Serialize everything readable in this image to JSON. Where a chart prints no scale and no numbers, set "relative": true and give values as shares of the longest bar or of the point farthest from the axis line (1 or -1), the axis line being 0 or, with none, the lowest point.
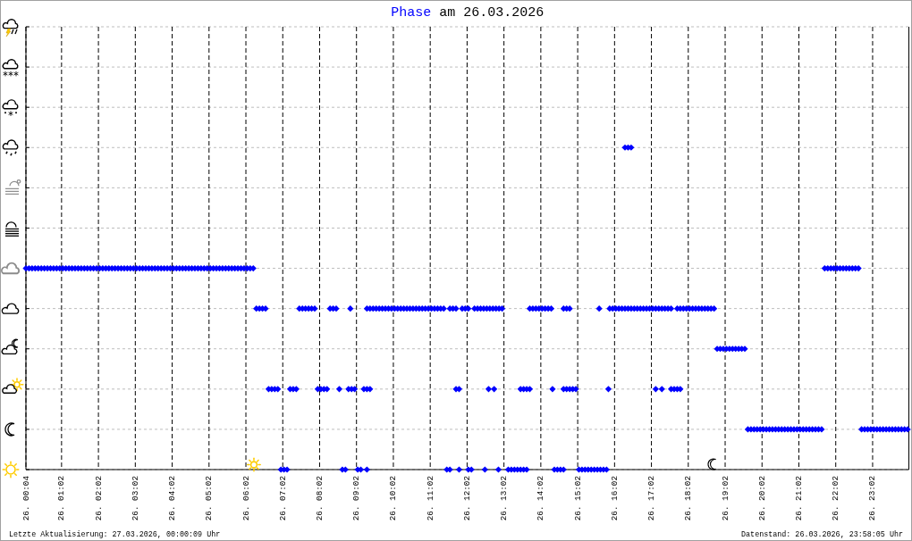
{
  "chart_data": {
    "type": "scatter",
    "title": "am 26.03.2026",
    "legend": "top",
    "marker": "diamond",
    "grid": true,
    "relative": true,
    "xlim": [
      "2026-03-26T00:04",
      "2026-03-27T00:01"
    ],
    "xticks": [
      {
        "value": "2026-03-26T00:04",
        "label": "26. 00:04"
      },
      {
        "value": "2026-03-26T01:02",
        "label": "26. 01:02"
      },
      {
        "value": "2026-03-26T02:02",
        "label": "26. 02:02"
      },
      {
        "value": "2026-03-26T03:02",
        "label": "26. 03:02"
      },
      {
        "value": "2026-03-26T04:02",
        "label": "26. 04:02"
      },
      {
        "value": "2026-03-26T05:02",
        "label": "26. 05:02"
      },
      {
        "value": "2026-03-26T06:02",
        "label": "26. 06:02"
      },
      {
        "value": "2026-03-26T07:02",
        "label": "26. 07:02"
      },
      {
        "value": "2026-03-26T08:02",
        "label": "26. 08:02"
      },
      {
        "value": "2026-03-26T09:02",
        "label": "26. 09:02"
      },
      {
        "value": "2026-03-26T10:02",
        "label": "26. 10:02"
      },
      {
        "value": "2026-03-26T11:02",
        "label": "26. 11:02"
      },
      {
        "value": "2026-03-26T12:02",
        "label": "26. 12:02"
      },
      {
        "value": "2026-03-26T13:02",
        "label": "26. 13:02"
      },
      {
        "value": "2026-03-26T14:02",
        "label": "26. 14:02"
      },
      {
        "value": "2026-03-26T15:02",
        "label": "26. 15:02"
      },
      {
        "value": "2026-03-26T16:02",
        "label": "26. 16:02"
      },
      {
        "value": "2026-03-26T17:02",
        "label": "26. 17:02"
      },
      {
        "value": "2026-03-26T18:02",
        "label": "26. 18:02"
      },
      {
        "value": "2026-03-26T19:02",
        "label": "26. 19:02"
      },
      {
        "value": "2026-03-26T20:02",
        "label": "26. 20:02"
      },
      {
        "value": "2026-03-26T21:02",
        "label": "26. 21:02"
      },
      {
        "value": "2026-03-26T22:02",
        "label": "26. 22:02"
      },
      {
        "value": "2026-03-26T23:02",
        "label": "26. 23:02"
      }
    ],
    "annotations": [
      "Letzte Aktualisierung: 27.03.2026, 00:00:09 Uhr",
      "Datenstand: 26.03.2026, 23:58:05 Uhr"
    ],
    "x": [
      "2026-03-26T00:04",
      "2026-03-26T00:09",
      "2026-03-26T00:14",
      "2026-03-26T00:19",
      "2026-03-26T00:24",
      "2026-03-26T00:29",
      "2026-03-26T00:34",
      "2026-03-26T00:39",
      "2026-03-26T00:44",
      "2026-03-26T00:49",
      "2026-03-26T00:54",
      "2026-03-26T00:59",
      "2026-03-26T01:04",
      "2026-03-26T01:09",
      "2026-03-26T01:14",
      "2026-03-26T01:19",
      "2026-03-26T01:24",
      "2026-03-26T01:29",
      "2026-03-26T01:34",
      "2026-03-26T01:39",
      "2026-03-26T01:44",
      "2026-03-26T01:49",
      "2026-03-26T01:54",
      "2026-03-26T01:59",
      "2026-03-26T02:04",
      "2026-03-26T02:09",
      "2026-03-26T02:14",
      "2026-03-26T02:19",
      "2026-03-26T02:24",
      "2026-03-26T02:29",
      "2026-03-26T02:34",
      "2026-03-26T02:39",
      "2026-03-26T02:44",
      "2026-03-26T02:49",
      "2026-03-26T02:54",
      "2026-03-26T02:59",
      "2026-03-26T03:04",
      "2026-03-26T03:09",
      "2026-03-26T03:14",
      "2026-03-26T03:19",
      "2026-03-26T03:24",
      "2026-03-26T03:29",
      "2026-03-26T03:34",
      "2026-03-26T03:39",
      "2026-03-26T03:44",
      "2026-03-26T03:49",
      "2026-03-26T03:54",
      "2026-03-26T03:59",
      "2026-03-26T04:04",
      "2026-03-26T04:09",
      "2026-03-26T04:14",
      "2026-03-26T04:19",
      "2026-03-26T04:24",
      "2026-03-26T04:29",
      "2026-03-26T04:34",
      "2026-03-26T04:39",
      "2026-03-26T04:44",
      "2026-03-26T04:49",
      "2026-03-26T04:54",
      "2026-03-26T04:59",
      "2026-03-26T05:04",
      "2026-03-26T05:09",
      "2026-03-26T05:14",
      "2026-03-26T05:19",
      "2026-03-26T05:24",
      "2026-03-26T05:29",
      "2026-03-26T05:34",
      "2026-03-26T05:39",
      "2026-03-26T05:44",
      "2026-03-26T05:49",
      "2026-03-26T05:54",
      "2026-03-26T05:59",
      "2026-03-26T06:04",
      "2026-03-26T06:09",
      "2026-03-26T06:14",
      "2026-03-26T06:19",
      "2026-03-26T06:24",
      "2026-03-26T06:29",
      "2026-03-26T06:34",
      "2026-03-26T06:39",
      "2026-03-26T06:44",
      "2026-03-26T06:49",
      "2026-03-26T06:54",
      "2026-03-26T06:59",
      "2026-03-26T07:04",
      "2026-03-26T07:09",
      "2026-03-26T07:14",
      "2026-03-26T07:19",
      "2026-03-26T07:24",
      "2026-03-26T07:29",
      "2026-03-26T07:34",
      "2026-03-26T07:39",
      "2026-03-26T07:44",
      "2026-03-26T07:49",
      "2026-03-26T07:54",
      "2026-03-26T07:59",
      "2026-03-26T08:04",
      "2026-03-26T08:09",
      "2026-03-26T08:14",
      "2026-03-26T08:19",
      "2026-03-26T08:24",
      "2026-03-26T08:29",
      "2026-03-26T08:34",
      "2026-03-26T08:39",
      "2026-03-26T08:44",
      "2026-03-26T08:49",
      "2026-03-26T08:54",
      "2026-03-26T08:59",
      "2026-03-26T08:52",
      "2026-03-26T09:04",
      "2026-03-26T09:09",
      "2026-03-26T09:14",
      "2026-03-26T09:19",
      "2026-03-26T09:24",
      "2026-03-26T09:19",
      "2026-03-26T09:24",
      "2026-03-26T09:29",
      "2026-03-26T09:34",
      "2026-03-26T09:39",
      "2026-03-26T09:44",
      "2026-03-26T09:49",
      "2026-03-26T09:54",
      "2026-03-26T09:59",
      "2026-03-26T10:04",
      "2026-03-26T10:09",
      "2026-03-26T10:14",
      "2026-03-26T10:19",
      "2026-03-26T10:24",
      "2026-03-26T10:29",
      "2026-03-26T10:34",
      "2026-03-26T10:39",
      "2026-03-26T10:44",
      "2026-03-26T10:49",
      "2026-03-26T10:54",
      "2026-03-26T10:59",
      "2026-03-26T11:04",
      "2026-03-26T11:09",
      "2026-03-26T11:14",
      "2026-03-26T11:19",
      "2026-03-26T11:24",
      "2026-03-26T09:19",
      "2026-03-26T11:29",
      "2026-03-26T11:34",
      "2026-03-26T11:34",
      "2026-03-26T11:39",
      "2026-03-26T11:44",
      "2026-03-26T11:44",
      "2026-03-26T11:49",
      "2026-03-26T11:49",
      "2026-03-26T11:54",
      "2026-03-26T11:59",
      "2026-03-26T12:04",
      "2026-03-26T12:04",
      "2026-03-26T12:09",
      "2026-03-26T12:14",
      "2026-03-26T12:19",
      "2026-03-26T12:24",
      "2026-03-26T12:29",
      "2026-03-26T12:34",
      "2026-03-26T12:39",
      "2026-03-26T12:44",
      "2026-03-26T12:49",
      "2026-03-26T12:54",
      "2026-03-26T12:59",
      "2026-03-26T12:31",
      "2026-03-26T12:37",
      "2026-03-26T12:46",
      "2026-03-26T12:53",
      "2026-03-26T13:09",
      "2026-03-26T13:14",
      "2026-03-26T13:19",
      "2026-03-26T13:24",
      "2026-03-26T13:29",
      "2026-03-26T13:34",
      "2026-03-26T13:39",
      "2026-03-26T13:29",
      "2026-03-26T13:34",
      "2026-03-26T13:39",
      "2026-03-26T13:44",
      "2026-03-26T13:44",
      "2026-03-26T13:49",
      "2026-03-26T13:54",
      "2026-03-26T13:59",
      "2026-03-26T14:04",
      "2026-03-26T14:09",
      "2026-03-26T14:14",
      "2026-03-26T14:19",
      "2026-03-26T14:21",
      "2026-03-26T14:24",
      "2026-03-26T14:29",
      "2026-03-26T14:34",
      "2026-03-26T14:39",
      "2026-03-26T14:39",
      "2026-03-26T14:44",
      "2026-03-26T14:49",
      "2026-03-26T14:39",
      "2026-03-26T14:44",
      "2026-03-26T14:49",
      "2026-03-26T14:54",
      "2026-03-26T14:59",
      "2026-03-26T15:04",
      "2026-03-26T15:09",
      "2026-03-26T15:14",
      "2026-03-26T15:19",
      "2026-03-26T15:24",
      "2026-03-26T15:29",
      "2026-03-26T15:34",
      "2026-03-26T15:39",
      "2026-03-26T15:44",
      "2026-03-26T15:49",
      "2026-03-26T15:37",
      "2026-03-26T15:52",
      "2026-03-26T15:54",
      "2026-03-26T15:59",
      "2026-03-26T16:04",
      "2026-03-26T16:09",
      "2026-03-26T16:14",
      "2026-03-26T16:19",
      "2026-03-26T16:24",
      "2026-03-26T16:29",
      "2026-03-26T16:34",
      "2026-03-26T16:39",
      "2026-03-26T16:44",
      "2026-03-26T16:49",
      "2026-03-26T16:54",
      "2026-03-26T16:59",
      "2026-03-26T17:04",
      "2026-03-26T17:09",
      "2026-03-26T17:14",
      "2026-03-26T17:19",
      "2026-03-26T17:24",
      "2026-03-26T17:29",
      "2026-03-26T17:34",
      "2026-03-26T16:19",
      "2026-03-26T16:24",
      "2026-03-26T16:29",
      "2026-03-26T17:09",
      "2026-03-26T17:19",
      "2026-03-26T17:34",
      "2026-03-26T17:39",
      "2026-03-26T17:44",
      "2026-03-26T17:49",
      "2026-03-26T17:44",
      "2026-03-26T17:49",
      "2026-03-26T17:54",
      "2026-03-26T17:59",
      "2026-03-26T18:04",
      "2026-03-26T18:09",
      "2026-03-26T18:14",
      "2026-03-26T18:19",
      "2026-03-26T18:24",
      "2026-03-26T18:29",
      "2026-03-26T18:34",
      "2026-03-26T18:39",
      "2026-03-26T18:44",
      "2026-03-26T18:49",
      "2026-03-26T18:54",
      "2026-03-26T18:59",
      "2026-03-26T19:04",
      "2026-03-26T19:09",
      "2026-03-26T19:14",
      "2026-03-26T19:19",
      "2026-03-26T19:24",
      "2026-03-26T19:29",
      "2026-03-26T19:34",
      "2026-03-26T19:39",
      "2026-03-26T19:44",
      "2026-03-26T19:49",
      "2026-03-26T19:54",
      "2026-03-26T19:59",
      "2026-03-26T20:04",
      "2026-03-26T20:09",
      "2026-03-26T20:14",
      "2026-03-26T20:19",
      "2026-03-26T20:24",
      "2026-03-26T20:29",
      "2026-03-26T20:34",
      "2026-03-26T20:39",
      "2026-03-26T20:44",
      "2026-03-26T20:49",
      "2026-03-26T20:54",
      "2026-03-26T20:59",
      "2026-03-26T21:04",
      "2026-03-26T21:09",
      "2026-03-26T21:14",
      "2026-03-26T21:19",
      "2026-03-26T21:24",
      "2026-03-26T21:29",
      "2026-03-26T21:34",
      "2026-03-26T21:39",
      "2026-03-26T21:44",
      "2026-03-26T21:49",
      "2026-03-26T21:54",
      "2026-03-26T21:59",
      "2026-03-26T22:04",
      "2026-03-26T22:09",
      "2026-03-26T22:14",
      "2026-03-26T22:19",
      "2026-03-26T22:24",
      "2026-03-26T22:29",
      "2026-03-26T22:34",
      "2026-03-26T22:39",
      "2026-03-26T22:44",
      "2026-03-26T22:49",
      "2026-03-26T22:54",
      "2026-03-26T22:59",
      "2026-03-26T23:04",
      "2026-03-26T23:09",
      "2026-03-26T23:14",
      "2026-03-26T23:19",
      "2026-03-26T23:24",
      "2026-03-26T23:29",
      "2026-03-26T23:34",
      "2026-03-26T23:39",
      "2026-03-26T23:44",
      "2026-03-26T23:49",
      "2026-03-26T23:54",
      "2026-03-26T23:59"
    ],
    "series": [
      {
        "name": "Phase",
        "color": "#0000ff",
        "values": [
          0.625,
          0.625,
          0.625,
          0.625,
          0.625,
          0.625,
          0.625,
          0.625,
          0.625,
          0.625,
          0.625,
          0.625,
          0.625,
          0.625,
          0.625,
          0.625,
          0.625,
          0.625,
          0.625,
          0.625,
          0.625,
          0.625,
          0.625,
          0.625,
          0.625,
          0.625,
          0.625,
          0.625,
          0.625,
          0.625,
          0.625,
          0.625,
          0.625,
          0.625,
          0.625,
          0.625,
          0.625,
          0.625,
          0.625,
          0.625,
          0.625,
          0.625,
          0.625,
          0.625,
          0.625,
          0.625,
          0.625,
          0.625,
          0.625,
          0.625,
          0.625,
          0.625,
          0.625,
          0.625,
          0.625,
          0.625,
          0.625,
          0.625,
          0.625,
          0.625,
          0.625,
          0.625,
          0.625,
          0.625,
          0.625,
          0.625,
          0.625,
          0.625,
          0.625,
          0.625,
          0.625,
          0.625,
          0.625,
          0.625,
          0.625,
          0.5,
          0.5,
          0.5,
          0.5,
          0.25,
          0.25,
          0.25,
          0.25,
          0,
          0,
          0,
          0.25,
          0.25,
          0.25,
          0.5,
          0.5,
          0.5,
          0.5,
          0.5,
          0.5,
          0.25,
          0.25,
          0.25,
          0.25,
          0.5,
          0.5,
          0.5,
          0.25,
          0,
          0,
          0.25,
          0.25,
          0.25,
          0.5,
          0,
          0,
          0.25,
          0.25,
          0.25,
          0.5,
          0.5,
          0.5,
          0.5,
          0.5,
          0.5,
          0.5,
          0.5,
          0.5,
          0.5,
          0.5,
          0.5,
          0.5,
          0.5,
          0.5,
          0.5,
          0.5,
          0.5,
          0.5,
          0.5,
          0.5,
          0.5,
          0.5,
          0.5,
          0.5,
          0.5,
          0,
          0,
          0,
          0.5,
          0.5,
          0.5,
          0.25,
          0.25,
          0,
          0.5,
          0.5,
          0.5,
          0,
          0,
          0.5,
          0.5,
          0.5,
          0.5,
          0.5,
          0.5,
          0.5,
          0.5,
          0.5,
          0.5,
          0,
          0.25,
          0.25,
          0,
          0,
          0,
          0,
          0,
          0,
          0,
          0,
          0.25,
          0.25,
          0.25,
          0.25,
          0.5,
          0.5,
          0.5,
          0.5,
          0.5,
          0.5,
          0.5,
          0.5,
          0.25,
          0,
          0,
          0,
          0,
          0.5,
          0.5,
          0.5,
          0.25,
          0.25,
          0.25,
          0.25,
          0.25,
          0,
          0,
          0,
          0,
          0,
          0,
          0,
          0,
          0,
          0,
          0.5,
          0.25,
          0.5,
          0.5,
          0.5,
          0.5,
          0.5,
          0.5,
          0.5,
          0.5,
          0.5,
          0.5,
          0.5,
          0.5,
          0.5,
          0.5,
          0.5,
          0.5,
          0.5,
          0.5,
          0.5,
          0.5,
          0.5,
          1,
          1,
          1,
          0.25,
          0.25,
          0.25,
          0.25,
          0.25,
          0.25,
          0.5,
          0.5,
          0.5,
          0.5,
          0.5,
          0.5,
          0.5,
          0.5,
          0.5,
          0.5,
          0.5,
          0.5,
          0.5,
          0.375,
          0.375,
          0.375,
          0.375,
          0.375,
          0.375,
          0.375,
          0.375,
          0.375,
          0.375,
          0.125,
          0.125,
          0.125,
          0.125,
          0.125,
          0.125,
          0.125,
          0.125,
          0.125,
          0.125,
          0.125,
          0.125,
          0.125,
          0.125,
          0.125,
          0.125,
          0.125,
          0.125,
          0.125,
          0.125,
          0.125,
          0.125,
          0.125,
          0.125,
          0.125,
          0.625,
          0.625,
          0.625,
          0.625,
          0.625,
          0.625,
          0.625,
          0.625,
          0.625,
          0.625,
          0.625,
          0.625,
          0.125,
          0.125,
          0.125,
          0.125,
          0.125,
          0.125,
          0.125,
          0.125,
          0.125,
          0.125,
          0.125,
          0.125,
          0.125,
          0.125,
          0.125,
          0.125
        ]
      }
    ]
  }
}
